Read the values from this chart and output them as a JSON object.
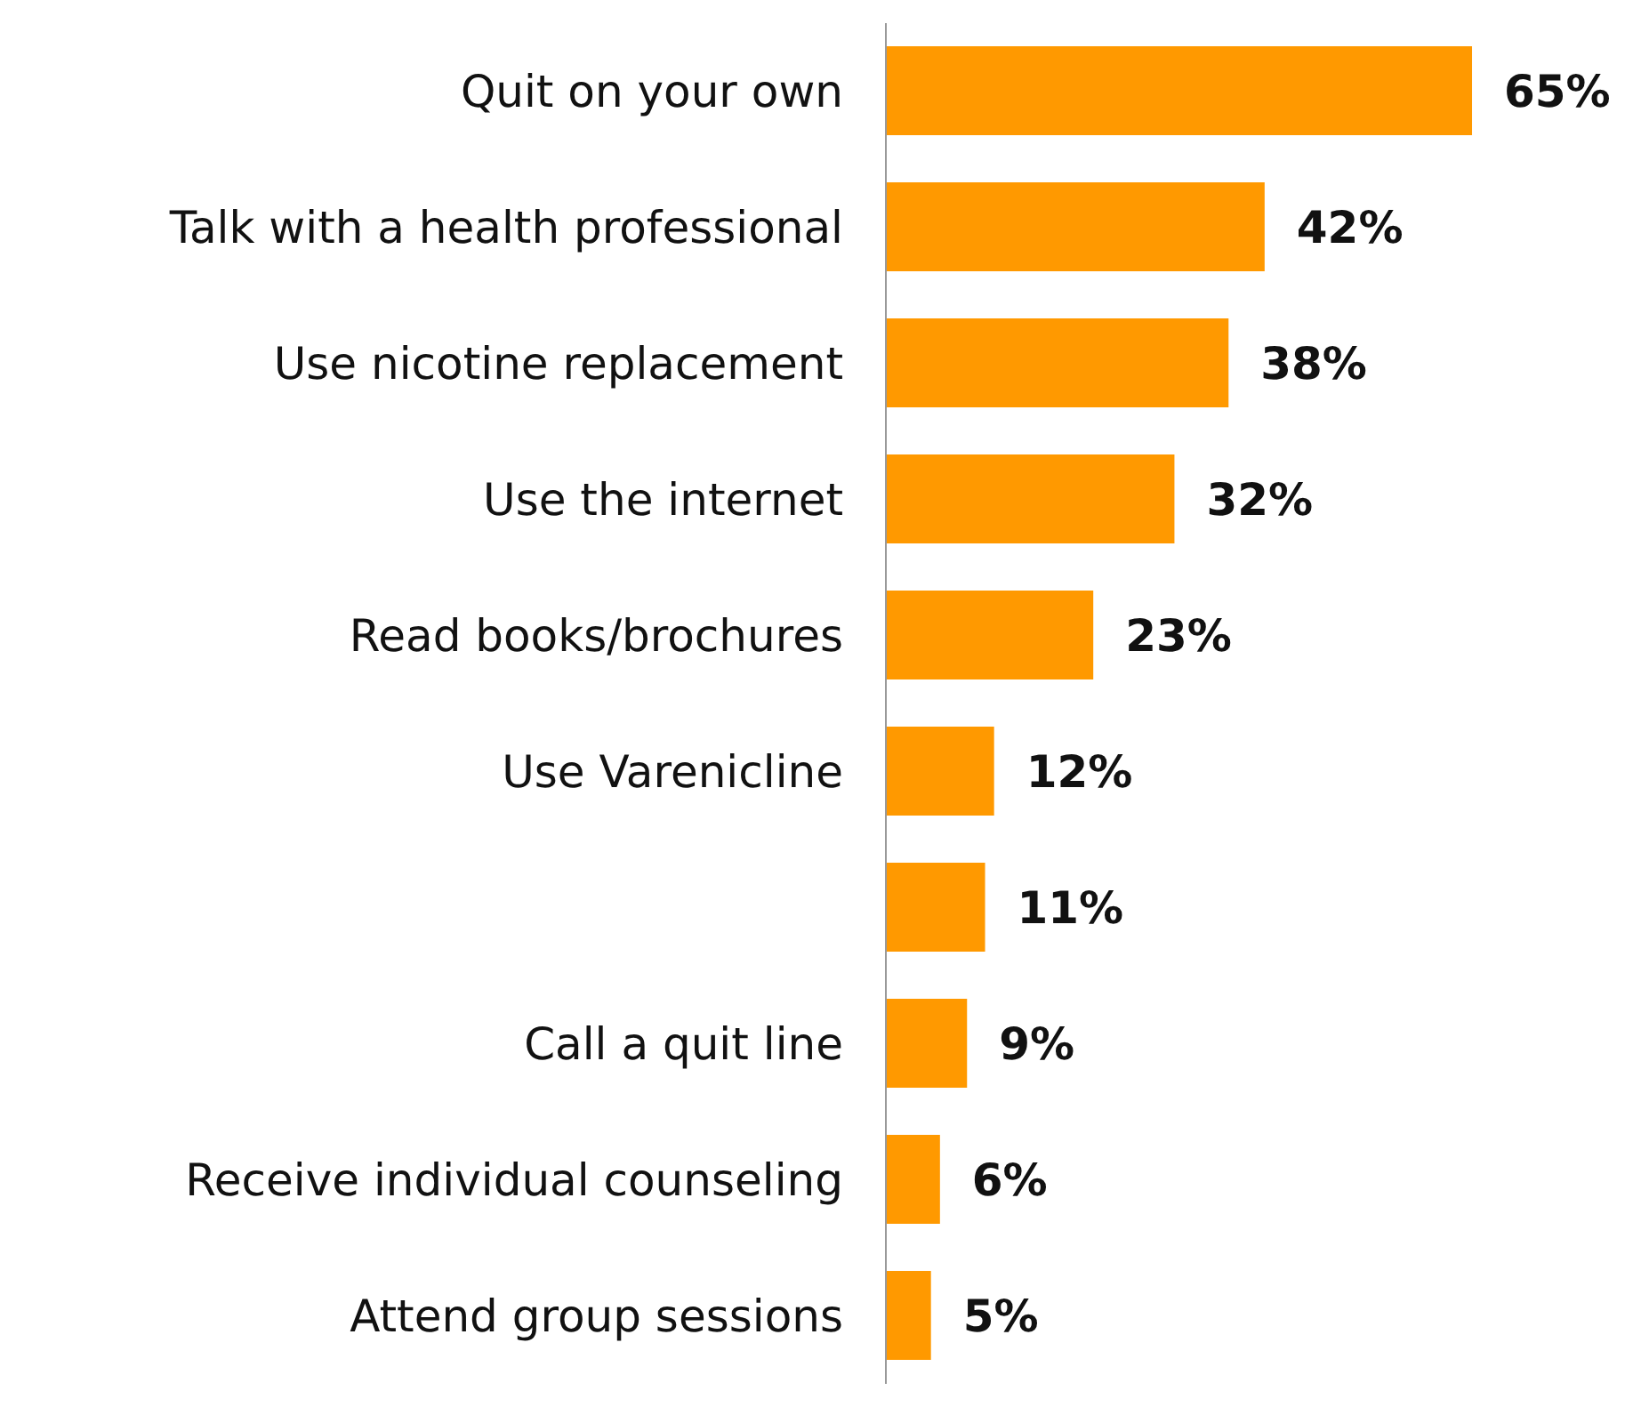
{
  "chart_data": {
    "type": "bar",
    "orientation": "horizontal",
    "categories": [
      "Quit on your own",
      "Talk with a health professional",
      "Use nicotine replacement",
      "Use the internet",
      "Read books/brochures",
      "Use Varenicline",
      null,
      "Call a quit line",
      "Receive individual counseling",
      "Attend group sessions"
    ],
    "values": [
      65,
      42,
      38,
      32,
      23,
      12,
      11,
      9,
      6,
      5
    ],
    "value_labels": [
      "65%",
      "42%",
      "38%",
      "32%",
      "23%",
      "12%",
      "11%",
      "9%",
      "6%",
      "5%"
    ],
    "color": "#ff9900"
  }
}
